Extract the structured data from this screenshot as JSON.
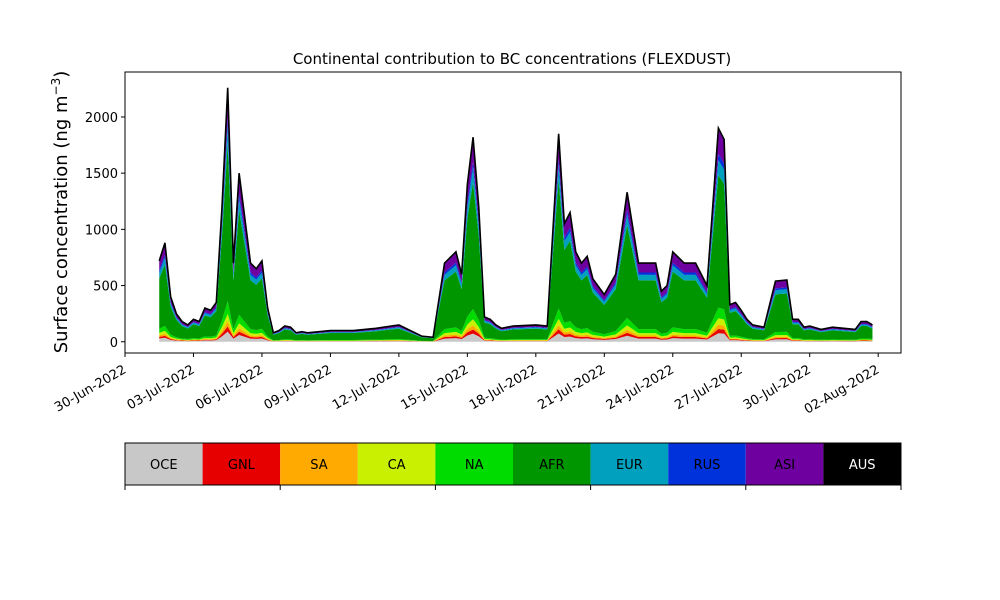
{
  "chart_data": {
    "type": "area",
    "stacked": true,
    "title": "Continental contribution to BC concentrations (FLEXDUST)",
    "ylabel": "Surface concentration (ng m",
    "ylabel_sup": "−3",
    "ylabel_close": ")",
    "ylim": [
      -100,
      2400
    ],
    "yticks": [
      0,
      500,
      1000,
      1500,
      2000
    ],
    "xlim": [
      "2022-06-30",
      "2022-08-03"
    ],
    "xticks": [
      "30-Jun-2022",
      "03-Jul-2022",
      "06-Jul-2022",
      "09-Jul-2022",
      "12-Jul-2022",
      "15-Jul-2022",
      "18-Jul-2022",
      "21-Jul-2022",
      "24-Jul-2022",
      "27-Jul-2022",
      "30-Jul-2022",
      "02-Aug-2022"
    ],
    "legend_placement": "bottom color bar",
    "series": [
      {
        "name": "OCE",
        "color": "#c8c8c8"
      },
      {
        "name": "GNL",
        "color": "#e60000"
      },
      {
        "name": "SA",
        "color": "#ffaa00"
      },
      {
        "name": "CA",
        "color": "#c8f000"
      },
      {
        "name": "NA",
        "color": "#00dc00"
      },
      {
        "name": "AFR",
        "color": "#009600"
      },
      {
        "name": "EUR",
        "color": "#00a0be"
      },
      {
        "name": "RUS",
        "color": "#0032dc"
      },
      {
        "name": "ASI",
        "color": "#6e00a0"
      },
      {
        "name": "AUS",
        "color": "#000000"
      }
    ],
    "total_series": {
      "x": [
        "2022-07-01T12:00",
        "2022-07-01T18:00",
        "2022-07-02T00:00",
        "2022-07-02T06:00",
        "2022-07-02T12:00",
        "2022-07-02T18:00",
        "2022-07-03T00:00",
        "2022-07-03T06:00",
        "2022-07-03T12:00",
        "2022-07-03T18:00",
        "2022-07-04T00:00",
        "2022-07-04T06:00",
        "2022-07-04T12:00",
        "2022-07-04T18:00",
        "2022-07-05T00:00",
        "2022-07-05T12:00",
        "2022-07-05T18:00",
        "2022-07-06T00:00",
        "2022-07-06T06:00",
        "2022-07-06T12:00",
        "2022-07-06T18:00",
        "2022-07-07T00:00",
        "2022-07-07T06:00",
        "2022-07-07T12:00",
        "2022-07-07T18:00",
        "2022-07-08T00:00",
        "2022-07-09T00:00",
        "2022-07-10T00:00",
        "2022-07-11T00:00",
        "2022-07-12T00:00",
        "2022-07-13T00:00",
        "2022-07-13T12:00",
        "2022-07-14T00:00",
        "2022-07-14T06:00",
        "2022-07-14T12:00",
        "2022-07-14T18:00",
        "2022-07-15T00:00",
        "2022-07-15T06:00",
        "2022-07-15T12:00",
        "2022-07-15T18:00",
        "2022-07-16T00:00",
        "2022-07-16T06:00",
        "2022-07-16T12:00",
        "2022-07-17T00:00",
        "2022-07-18T00:00",
        "2022-07-18T12:00",
        "2022-07-19T00:00",
        "2022-07-19T06:00",
        "2022-07-19T12:00",
        "2022-07-19T18:00",
        "2022-07-20T00:00",
        "2022-07-20T06:00",
        "2022-07-20T12:00",
        "2022-07-21T00:00",
        "2022-07-21T12:00",
        "2022-07-22T00:00",
        "2022-07-22T12:00",
        "2022-07-23T00:00",
        "2022-07-23T06:00",
        "2022-07-23T12:00",
        "2022-07-23T18:00",
        "2022-07-24T00:00",
        "2022-07-24T12:00",
        "2022-07-25T00:00",
        "2022-07-25T12:00",
        "2022-07-26T00:00",
        "2022-07-26T06:00",
        "2022-07-26T12:00",
        "2022-07-26T18:00",
        "2022-07-27T00:00",
        "2022-07-27T06:00",
        "2022-07-27T12:00",
        "2022-07-28T00:00",
        "2022-07-28T12:00",
        "2022-07-29T00:00",
        "2022-07-29T06:00",
        "2022-07-29T12:00",
        "2022-07-29T18:00",
        "2022-07-30T00:00",
        "2022-07-30T12:00",
        "2022-07-31T00:00",
        "2022-07-31T12:00",
        "2022-08-01T00:00",
        "2022-08-01T06:00",
        "2022-08-01T12:00",
        "2022-08-01T18:00"
      ],
      "y": [
        720,
        880,
        400,
        250,
        180,
        150,
        200,
        180,
        300,
        280,
        350,
        1200,
        2260,
        700,
        1500,
        700,
        650,
        720,
        300,
        80,
        100,
        140,
        130,
        80,
        90,
        80,
        100,
        100,
        120,
        150,
        50,
        40,
        700,
        750,
        800,
        600,
        1400,
        1820,
        1200,
        220,
        200,
        150,
        120,
        140,
        150,
        140,
        1850,
        1050,
        1150,
        800,
        700,
        760,
        560,
        420,
        600,
        1330,
        700,
        700,
        700,
        450,
        500,
        800,
        700,
        700,
        500,
        1900,
        1800,
        330,
        350,
        280,
        200,
        150,
        130,
        540,
        550,
        200,
        200,
        130,
        140,
        110,
        130,
        120,
        110,
        180,
        180,
        150
      ]
    },
    "band_fractions": {
      "OCE": 0.04,
      "GNL": 0.02,
      "SA": 0.02,
      "CA": 0.03,
      "NA": 0.05,
      "AFR": 0.62,
      "EUR": 0.07,
      "RUS": 0.03,
      "ASI": 0.12,
      "AUS": 0.0
    }
  }
}
